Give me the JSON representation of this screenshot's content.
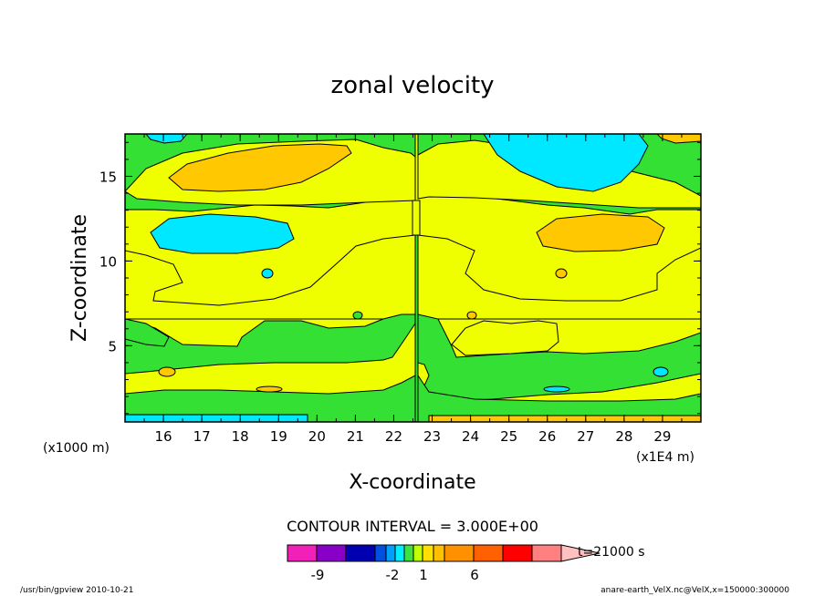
{
  "chart_data": {
    "type": "heatmap",
    "title": "zonal velocity",
    "xlabel": "X-coordinate",
    "ylabel": "Z-coordinate",
    "x_unit_label": "(x1E4 m)",
    "y_unit_label": "(x1000 m)",
    "x_ticks": [
      "16",
      "17",
      "18",
      "19",
      "20",
      "21",
      "22",
      "23",
      "24",
      "25",
      "26",
      "27",
      "28",
      "29"
    ],
    "y_ticks": [
      "5",
      "10",
      "15"
    ],
    "xlim": [
      15,
      30
    ],
    "ylim": [
      0.5,
      17.5
    ],
    "contour_interval_text": "CONTOUR INTERVAL = 3.000E+00",
    "time_text": "t=21000 s",
    "colorbar_labels": [
      "-9",
      "-2",
      "1",
      "6"
    ],
    "colorbar_colors": [
      "#f020b8",
      "#8800c8",
      "#0000b0",
      "#0050e0",
      "#00a0ff",
      "#00f0ff",
      "#40e040",
      "#c0ff00",
      "#ffe000",
      "#ffc000",
      "#ff9000",
      "#ff6000",
      "#ff0000",
      "#ff8080",
      "#ffc0c0"
    ],
    "fill_colors": {
      "green": "#33e033",
      "yellow": "#f0ff00",
      "cyan": "#00e8ff",
      "orange": "#ffc800"
    },
    "regions_note": "Filled contour field: background yellow/green bands, cyan and orange cells near top and mid heights, symmetric about x≈22.6."
  },
  "footer": {
    "left": "/usr/bin/gpview  2010-10-21",
    "right": "anare-earth_VelX.nc@VelX,x=150000:300000"
  }
}
